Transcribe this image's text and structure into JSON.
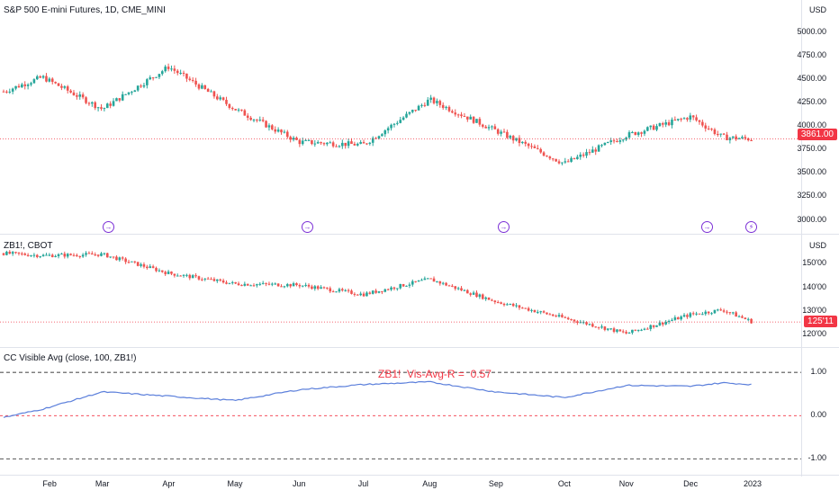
{
  "panes": {
    "main": {
      "title": "S&P 500 E-mini Futures, 1D, CME_MINI",
      "currency": "USD",
      "axis_labels": [
        "5000.00",
        "4750.00",
        "4500.00",
        "4250.00",
        "4000.00",
        "3750.00",
        "3500.00",
        "3250.00",
        "3000.00"
      ],
      "last_price": "3861.00"
    },
    "sub": {
      "title": "ZB1!, CBOT",
      "currency": "USD",
      "axis_labels": [
        "150'00",
        "140'00",
        "130'00",
        "120'00"
      ],
      "last_price": "125'11"
    },
    "indicator": {
      "title": "CC Visible Avg (close, 100, ZB1!)",
      "label": "ZB1!  Vis-Avg-R =  0.57",
      "axis_labels": [
        "1.00",
        "0.00",
        "-1.00"
      ]
    }
  },
  "x_axis": {
    "labels": [
      "Feb",
      "Mar",
      "Apr",
      "May",
      "Jun",
      "Jul",
      "Aug",
      "Sep",
      "Oct",
      "Nov",
      "Dec",
      "2023"
    ]
  },
  "events": {
    "markers": [
      "dividend",
      "dividend",
      "dividend",
      "dividend",
      "split"
    ]
  },
  "colors": {
    "up": "#26a69a",
    "down": "#ef5350",
    "corr_line": "#5b7fdb",
    "marker": "#7b2fd6",
    "price_line": "#f23645"
  },
  "chart_data": [
    {
      "type": "candlestick",
      "title": "S&P 500 E-mini Futures, 1D, CME_MINI",
      "ylim": [
        2900,
        5150
      ],
      "x": [
        "Jan 13",
        "Feb 1",
        "Mar 1",
        "Apr 1",
        "May 2",
        "Jun 1",
        "Jul 1",
        "Aug 1",
        "Sep 1",
        "Oct 3",
        "Nov 1",
        "Dec 1",
        "Dec 16",
        "Dec 30"
      ],
      "close_path": [
        4360,
        4520,
        4180,
        4630,
        4180,
        3830,
        3800,
        4280,
        3950,
        3600,
        3900,
        4100,
        3880,
        3861
      ],
      "last": 3861
    },
    {
      "type": "candlestick",
      "title": "ZB1!, CBOT",
      "ylim": [
        117,
        157
      ],
      "x": [
        "Jan 13",
        "Feb 1",
        "Mar 1",
        "Apr 1",
        "May 2",
        "Jun 1",
        "Jul 1",
        "Aug 1",
        "Sep 1",
        "Oct 3",
        "Nov 1",
        "Dec 1",
        "Dec 16",
        "Dec 30"
      ],
      "close_path": [
        154.5,
        153.5,
        154,
        146,
        141.5,
        141,
        137,
        143.5,
        134,
        127,
        120.5,
        128.5,
        130.5,
        125.34
      ],
      "last": 125.34
    },
    {
      "type": "line",
      "title": "CC Visible Avg (close, 100, ZB1!)",
      "ylim": [
        -1.2,
        1.4
      ],
      "x": [
        "Jan 13",
        "Feb 1",
        "Mar 1",
        "Apr 1",
        "May 2",
        "Jun 1",
        "Jul 1",
        "Aug 1",
        "Sep 1",
        "Oct 3",
        "Nov 1",
        "Dec 1",
        "Dec 16",
        "Dec 30"
      ],
      "values": [
        -0.05,
        0.15,
        0.55,
        0.45,
        0.35,
        0.6,
        0.72,
        0.78,
        0.55,
        0.42,
        0.7,
        0.68,
        0.76,
        0.72
      ],
      "reference_lines": [
        1.0,
        0.0,
        -1.0
      ],
      "label_value": 0.57
    }
  ]
}
